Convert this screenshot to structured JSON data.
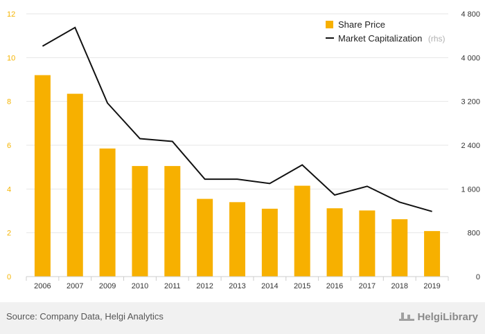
{
  "chart_data": {
    "type": "bar",
    "categories": [
      "2006",
      "2007",
      "2009",
      "2010",
      "2011",
      "2012",
      "2013",
      "2014",
      "2015",
      "2016",
      "2017",
      "2018",
      "2019"
    ],
    "series": [
      {
        "name": "Share Price",
        "type": "bar",
        "axis": "left",
        "color": "#f7b000",
        "values": [
          9.2,
          8.35,
          5.85,
          5.05,
          5.05,
          3.55,
          3.4,
          3.1,
          4.15,
          3.12,
          3.02,
          2.62,
          2.08
        ]
      },
      {
        "name": "Market Capitalization",
        "name_note": "(rhs)",
        "type": "line",
        "axis": "right",
        "color": "#111111",
        "values": [
          4210,
          4550,
          3170,
          2520,
          2470,
          1780,
          1780,
          1700,
          2040,
          1490,
          1650,
          1360,
          1190
        ]
      }
    ],
    "y_left": {
      "min": 0,
      "max": 12,
      "ticks": [
        "0",
        "2",
        "4",
        "6",
        "8",
        "10",
        "12"
      ],
      "color": "#f5b400"
    },
    "y_right": {
      "min": 0,
      "max": 4800,
      "ticks": [
        "0",
        "800",
        "1 600",
        "2 400",
        "3 200",
        "4 000",
        "4 800"
      ]
    },
    "grid": true,
    "legend_position": "top-right"
  },
  "footer": {
    "source": "Source: Company Data, Helgi Analytics",
    "brand": "HelgiLibrary"
  }
}
